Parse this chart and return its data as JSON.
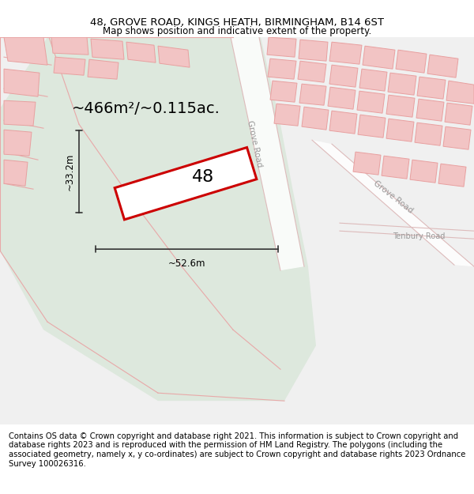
{
  "title_line1": "48, GROVE ROAD, KINGS HEATH, BIRMINGHAM, B14 6ST",
  "title_line2": "Map shows position and indicative extent of the property.",
  "area_text": "~466m²/~0.115ac.",
  "label_48": "48",
  "dim_width": "~52.6m",
  "dim_height": "~33.2m",
  "road_label_top": "Grove Road",
  "road_label_bot": "Grove Road",
  "road_label_ten": "Tenbury Road",
  "footer_text": "Contains OS data © Crown copyright and database right 2021. This information is subject to Crown copyright and database rights 2023 and is reproduced with the permission of HM Land Registry. The polygons (including the associated geometry, namely x, y co-ordinates) are subject to Crown copyright and database rights 2023 Ordnance Survey 100026316.",
  "bg_color": "#ffffff",
  "map_bg": "#f0f0f0",
  "green_color": "#dde8dd",
  "prop_color": "#cc0000",
  "bld_fill": "#f2c4c4",
  "bld_edge": "#e8a0a0",
  "dim_color": "#333333",
  "road_label_color": "#999999",
  "title_fs": 9.5,
  "sub_fs": 8.5,
  "area_fs": 14,
  "num_fs": 16,
  "footer_fs": 7.2
}
